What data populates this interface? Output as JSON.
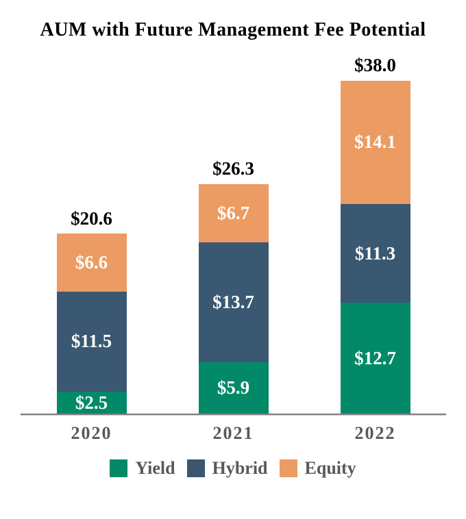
{
  "title": "AUM with Future Management Fee Potential",
  "chart_data": {
    "type": "bar",
    "stacked": true,
    "title": "AUM with Future Management Fee Potential",
    "categories": [
      "2020",
      "2021",
      "2022"
    ],
    "series": [
      {
        "name": "Yield",
        "color": "#028A68",
        "values": [
          2.5,
          5.9,
          12.7
        ],
        "value_labels": [
          "$2.5",
          "$5.9",
          "$12.7"
        ]
      },
      {
        "name": "Hybrid",
        "color": "#3A5871",
        "values": [
          11.5,
          13.7,
          11.3
        ],
        "value_labels": [
          "$11.5",
          "$13.7",
          "$11.3"
        ]
      },
      {
        "name": "Equity",
        "color": "#EC9B62",
        "values": [
          6.6,
          6.7,
          14.1
        ],
        "value_labels": [
          "$6.6",
          "$6.7",
          "$14.1"
        ]
      }
    ],
    "totals": [
      20.6,
      26.3,
      38.0
    ],
    "total_labels": [
      "$20.6",
      "$26.3",
      "$38.0"
    ],
    "legend": [
      "Yield",
      "Hybrid",
      "Equity"
    ],
    "legend_position": "bottom",
    "grid": false,
    "ylim": [
      0,
      40.7
    ],
    "colors": {
      "total_label": "#000000",
      "segment_label": "#FFFFFF",
      "category_label": "#595959",
      "legend_label": "#595959",
      "axis_line": "#7F7F7F",
      "background": "#FFFFFF"
    }
  }
}
